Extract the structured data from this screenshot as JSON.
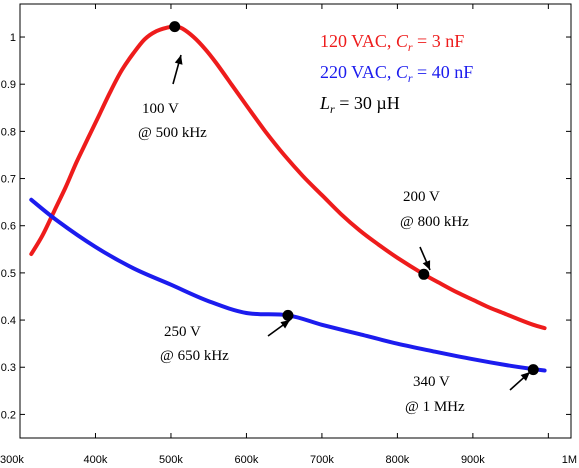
{
  "chart_data": {
    "type": "line",
    "x_ticks": [
      {
        "value": 300,
        "label": "300k"
      },
      {
        "value": 400,
        "label": "400k"
      },
      {
        "value": 500,
        "label": "500k"
      },
      {
        "value": 600,
        "label": "600k"
      },
      {
        "value": 700,
        "label": "700k"
      },
      {
        "value": 800,
        "label": "800k"
      },
      {
        "value": 900,
        "label": "900k"
      },
      {
        "value": 1000,
        "label": "1M"
      }
    ],
    "y_ticks": [
      {
        "value": 0.2,
        "label": "0.2"
      },
      {
        "value": 0.3,
        "label": "0.3"
      },
      {
        "value": 0.4,
        "label": "0.4"
      },
      {
        "value": 0.5,
        "label": "0.5"
      },
      {
        "value": 0.6,
        "label": "0.6"
      },
      {
        "value": 0.7,
        "label": "0.7"
      },
      {
        "value": 0.8,
        "label": "0.8"
      },
      {
        "value": 0.9,
        "label": "0.9"
      },
      {
        "value": 1.0,
        "label": "1"
      }
    ],
    "xlim": [
      300,
      1030
    ],
    "ylim": [
      0.15,
      1.07
    ],
    "grid": false,
    "legend_position": "top-right",
    "series": [
      {
        "name_parts": [
          "120 VAC, ",
          "C",
          "r",
          " = 3 nF"
        ],
        "color": "#ee1c1c",
        "x": [
          315,
          330,
          345,
          360,
          375,
          390,
          405,
          420,
          435,
          450,
          465,
          480,
          495,
          505,
          515,
          530,
          545,
          560,
          580,
          600,
          625,
          650,
          675,
          700,
          725,
          750,
          775,
          800,
          835,
          860,
          880,
          900,
          920,
          940,
          960,
          980,
          995
        ],
        "y": [
          0.54,
          0.58,
          0.63,
          0.68,
          0.735,
          0.785,
          0.835,
          0.885,
          0.93,
          0.965,
          0.995,
          1.012,
          1.02,
          1.022,
          1.018,
          1.0,
          0.975,
          0.945,
          0.9,
          0.855,
          0.8,
          0.75,
          0.705,
          0.665,
          0.625,
          0.59,
          0.56,
          0.532,
          0.497,
          0.475,
          0.458,
          0.443,
          0.428,
          0.415,
          0.402,
          0.39,
          0.383
        ]
      },
      {
        "name_parts": [
          "220 VAC, ",
          "C",
          "r",
          " = 40 nF"
        ],
        "color": "#1c1cee",
        "x": [
          315,
          350,
          400,
          450,
          500,
          550,
          600,
          655,
          700,
          750,
          800,
          850,
          900,
          950,
          995
        ],
        "y": [
          0.655,
          0.61,
          0.555,
          0.51,
          0.475,
          0.44,
          0.415,
          0.41,
          0.39,
          0.37,
          0.35,
          0.333,
          0.317,
          0.303,
          0.293
        ]
      }
    ],
    "note_parts": [
      "L",
      "r",
      " = 30 µH"
    ],
    "markers": [
      {
        "x": 505,
        "y": 1.022
      },
      {
        "x": 835,
        "y": 0.497
      },
      {
        "x": 655,
        "y": 0.41
      },
      {
        "x": 980,
        "y": 0.295
      }
    ],
    "annotations": [
      {
        "line1": "100 V",
        "line2": "@ 500 kHz"
      },
      {
        "line1": "200 V",
        "line2": "@ 800 kHz"
      },
      {
        "line1": "250 V",
        "line2": "@ 650 kHz"
      },
      {
        "line1": "340 V",
        "line2": "@ 1 MHz"
      }
    ]
  }
}
